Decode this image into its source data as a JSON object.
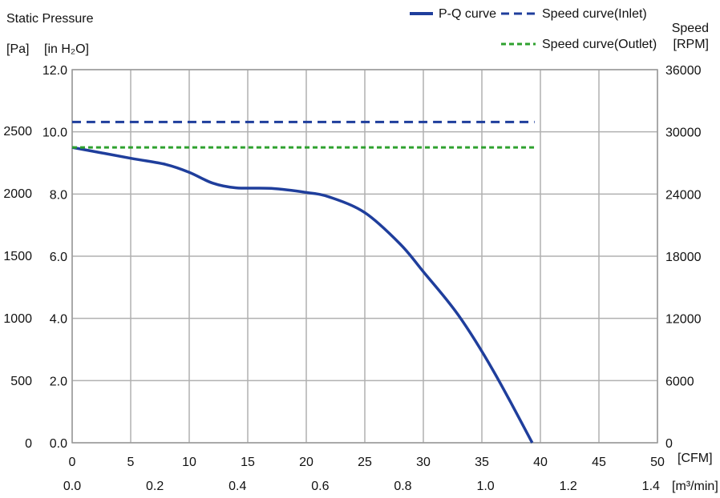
{
  "chart_data": {
    "type": "line",
    "y_left_title": "Static Pressure",
    "y_left_unit_pa": "[Pa]",
    "y_left_unit_inh2o": "[in H₂O]",
    "y_right_title": "Speed",
    "y_right_unit": "[RPM]",
    "x_cfm_unit": "[CFM]",
    "x_m3min_unit": "[m³/min]",
    "x_cfm_range": [
      0,
      50
    ],
    "x_cfm_ticks": [
      "0",
      "5",
      "10",
      "15",
      "20",
      "25",
      "30",
      "35",
      "40",
      "45",
      "50"
    ],
    "x_m3min_range": [
      0,
      1.4159
    ],
    "x_m3min_ticks": [
      {
        "value": 0.0,
        "label": "0.0"
      },
      {
        "value": 0.2,
        "label": "0.2"
      },
      {
        "value": 0.4,
        "label": "0.4"
      },
      {
        "value": 0.6,
        "label": "0.6"
      },
      {
        "value": 0.8,
        "label": "0.8"
      },
      {
        "value": 1.0,
        "label": "1.0"
      },
      {
        "value": 1.2,
        "label": "1.2"
      },
      {
        "value": 1.4,
        "label": "1.4"
      }
    ],
    "y_inh2o_range": [
      0,
      12
    ],
    "y_inh2o_ticks": [
      "0.0",
      "2.0",
      "4.0",
      "6.0",
      "8.0",
      "10.0",
      "12.0"
    ],
    "y_pa_range": [
      0,
      2988.6
    ],
    "y_pa_ticks": [
      {
        "value": 0,
        "label": "0"
      },
      {
        "value": 500,
        "label": "500"
      },
      {
        "value": 1000,
        "label": "1000"
      },
      {
        "value": 1500,
        "label": "1500"
      },
      {
        "value": 2000,
        "label": "2000"
      },
      {
        "value": 2500,
        "label": "2500"
      }
    ],
    "y_rpm_range": [
      0,
      36000
    ],
    "y_rpm_ticks": [
      "0",
      "6000",
      "12000",
      "18000",
      "24000",
      "30000",
      "36000"
    ],
    "grid": true,
    "legend_position": "top-right",
    "series": [
      {
        "name": "P-Q curve",
        "axis": "left",
        "color": "#1f3e9c",
        "style": "solid",
        "x": [
          0,
          5,
          8,
          10,
          12,
          14,
          17,
          20,
          22,
          25,
          28,
          30,
          33,
          36,
          39.3
        ],
        "y": [
          9.5,
          9.15,
          8.95,
          8.7,
          8.35,
          8.2,
          8.18,
          8.05,
          7.9,
          7.4,
          6.4,
          5.5,
          4.1,
          2.3,
          0.0
        ]
      },
      {
        "name": "Speed curve(Inlet)",
        "axis": "right",
        "color": "#1f3e9c",
        "style": "dashed",
        "x": [
          0,
          39.5
        ],
        "y": [
          30950,
          30950
        ]
      },
      {
        "name": "Speed curve(Outlet)",
        "axis": "right",
        "color": "#2ea12e",
        "style": "dotted",
        "x": [
          0,
          39.5
        ],
        "y": [
          28500,
          28500
        ]
      }
    ]
  }
}
